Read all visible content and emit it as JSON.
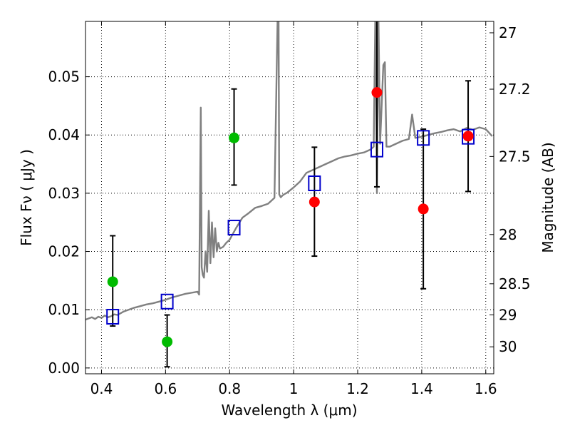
{
  "chart_data": {
    "type": "scatter",
    "xlabel": "Wavelength  λ (μm)",
    "ylabel": "Flux  Fν  ( μJy )",
    "y2label": "Magnitude (AB)",
    "xlim": [
      0.35,
      1.625
    ],
    "ylim": [
      -0.001,
      0.0595
    ],
    "grid": true,
    "x_ticks": [
      0.4,
      0.6,
      0.8,
      1.0,
      1.2,
      1.4,
      1.6
    ],
    "x_tick_labels": [
      "0.4",
      "0.6",
      "0.8",
      "1",
      "1.2",
      "1.4",
      "1.6"
    ],
    "y_ticks": [
      0.0,
      0.01,
      0.02,
      0.03,
      0.04,
      0.05
    ],
    "y_tick_labels": [
      "0.00",
      "0.01",
      "0.02",
      "0.03",
      "0.04",
      "0.05"
    ],
    "mag_ticks": [
      27,
      27.2,
      27.5,
      28,
      28.5,
      29,
      30
    ],
    "mag_tick_labels": [
      "27",
      "27.2",
      "27.5",
      "28",
      "28.5",
      "29",
      "30"
    ],
    "colors": {
      "model": "#808080",
      "green": "#00bb00",
      "red": "#ff0000",
      "squares": "#0000cc",
      "errorbars": "#000000",
      "grid": "#000000"
    },
    "model_spectrum": {
      "name": "",
      "x": [
        0.35,
        0.36,
        0.37,
        0.38,
        0.39,
        0.4,
        0.41,
        0.42,
        0.43,
        0.44,
        0.45,
        0.46,
        0.47,
        0.48,
        0.49,
        0.5,
        0.52,
        0.54,
        0.56,
        0.58,
        0.6,
        0.62,
        0.64,
        0.66,
        0.68,
        0.7,
        0.705,
        0.71,
        0.713,
        0.716,
        0.72,
        0.725,
        0.73,
        0.735,
        0.74,
        0.745,
        0.75,
        0.755,
        0.76,
        0.765,
        0.77,
        0.78,
        0.79,
        0.8,
        0.82,
        0.84,
        0.86,
        0.88,
        0.9,
        0.92,
        0.94,
        0.95,
        0.953,
        0.955,
        0.96,
        0.965,
        0.97,
        0.98,
        1.0,
        1.02,
        1.04,
        1.06,
        1.08,
        1.1,
        1.12,
        1.14,
        1.16,
        1.18,
        1.2,
        1.22,
        1.24,
        1.25,
        1.255,
        1.26,
        1.265,
        1.27,
        1.28,
        1.285,
        1.29,
        1.3,
        1.32,
        1.34,
        1.36,
        1.37,
        1.38,
        1.4,
        1.42,
        1.44,
        1.46,
        1.48,
        1.5,
        1.52,
        1.54,
        1.56,
        1.58,
        1.6,
        1.62
      ],
      "y": [
        0.0083,
        0.0085,
        0.0087,
        0.0084,
        0.0088,
        0.0086,
        0.009,
        0.0087,
        0.0089,
        0.0092,
        0.0091,
        0.0094,
        0.0097,
        0.0099,
        0.0101,
        0.0103,
        0.0106,
        0.0109,
        0.0111,
        0.0114,
        0.0117,
        0.0121,
        0.0124,
        0.0127,
        0.0129,
        0.0131,
        0.0126,
        0.0447,
        0.0173,
        0.016,
        0.0155,
        0.02,
        0.0165,
        0.027,
        0.018,
        0.025,
        0.019,
        0.024,
        0.02,
        0.0215,
        0.0205,
        0.0208,
        0.0215,
        0.022,
        0.024,
        0.0258,
        0.0266,
        0.0275,
        0.0278,
        0.0282,
        0.0292,
        0.06,
        0.06,
        0.0298,
        0.0293,
        0.0296,
        0.0298,
        0.0301,
        0.031,
        0.032,
        0.0335,
        0.034,
        0.0345,
        0.035,
        0.0355,
        0.036,
        0.0363,
        0.0365,
        0.0368,
        0.037,
        0.0375,
        0.038,
        0.06,
        0.03,
        0.06,
        0.0385,
        0.052,
        0.0525,
        0.038,
        0.038,
        0.0385,
        0.039,
        0.0393,
        0.0435,
        0.0395,
        0.0397,
        0.04,
        0.0403,
        0.0405,
        0.0408,
        0.041,
        0.0406,
        0.0412,
        0.0409,
        0.0413,
        0.041,
        0.0398
      ]
    },
    "green_points": [
      {
        "x": 0.435,
        "y": 0.0148,
        "yerr_low": 0.0072,
        "yerr_high": 0.0227
      },
      {
        "x": 0.605,
        "y": 0.0045,
        "yerr_low": 0.0002,
        "yerr_high": 0.0091
      },
      {
        "x": 0.814,
        "y": 0.0395,
        "yerr_low": 0.0314,
        "yerr_high": 0.0479
      }
    ],
    "red_points": [
      {
        "x": 1.065,
        "y": 0.0285,
        "yerr_low": 0.0192,
        "yerr_high": 0.0379
      },
      {
        "x": 1.26,
        "y": 0.0473,
        "yerr_low": 0.0311,
        "yerr_high": 0.06
      },
      {
        "x": 1.405,
        "y": 0.0273,
        "yerr_low": 0.0136,
        "yerr_high": 0.041
      },
      {
        "x": 1.545,
        "y": 0.0398,
        "yerr_low": 0.0303,
        "yerr_high": 0.0493
      }
    ],
    "model_squares": [
      {
        "x": 0.435,
        "y": 0.0088
      },
      {
        "x": 0.605,
        "y": 0.0114
      },
      {
        "x": 0.814,
        "y": 0.0241
      },
      {
        "x": 1.065,
        "y": 0.0317
      },
      {
        "x": 1.26,
        "y": 0.0375
      },
      {
        "x": 1.405,
        "y": 0.0395
      },
      {
        "x": 1.545,
        "y": 0.0397
      }
    ]
  }
}
